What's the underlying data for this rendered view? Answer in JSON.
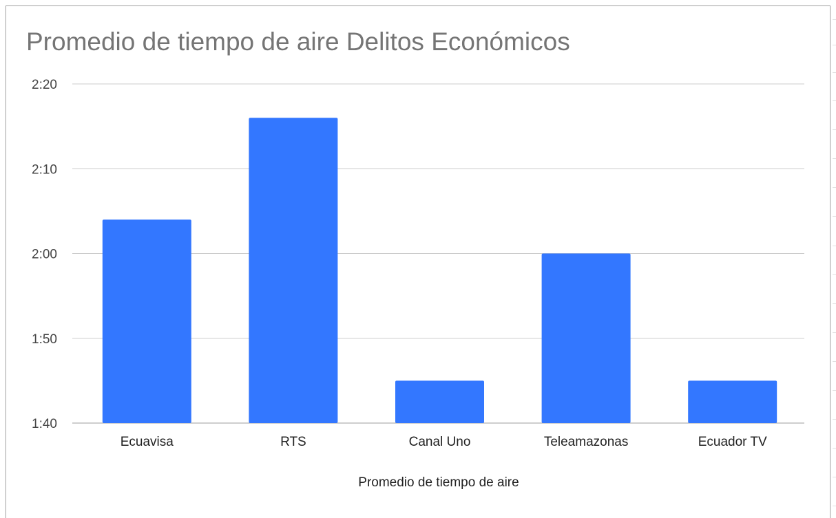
{
  "chart_data": {
    "type": "bar",
    "title": "Promedio de tiempo de aire Delitos Económicos",
    "xlabel": "Promedio de tiempo de aire",
    "ylabel": "",
    "categories": [
      "Ecuavisa",
      "RTS",
      "Canal Uno",
      "Teleamazonas",
      "Ecuador TV"
    ],
    "values_seconds": [
      124,
      136,
      105,
      120,
      105
    ],
    "ylim_seconds": [
      100,
      140
    ],
    "yticks_seconds": [
      100,
      110,
      120,
      130,
      140
    ],
    "ytick_labels": [
      "1:40",
      "1:50",
      "2:00",
      "2:10",
      "2:20"
    ],
    "grid": true,
    "legend": "none",
    "bar_color": "#3377ff",
    "gridline_color": "#cccccc"
  }
}
